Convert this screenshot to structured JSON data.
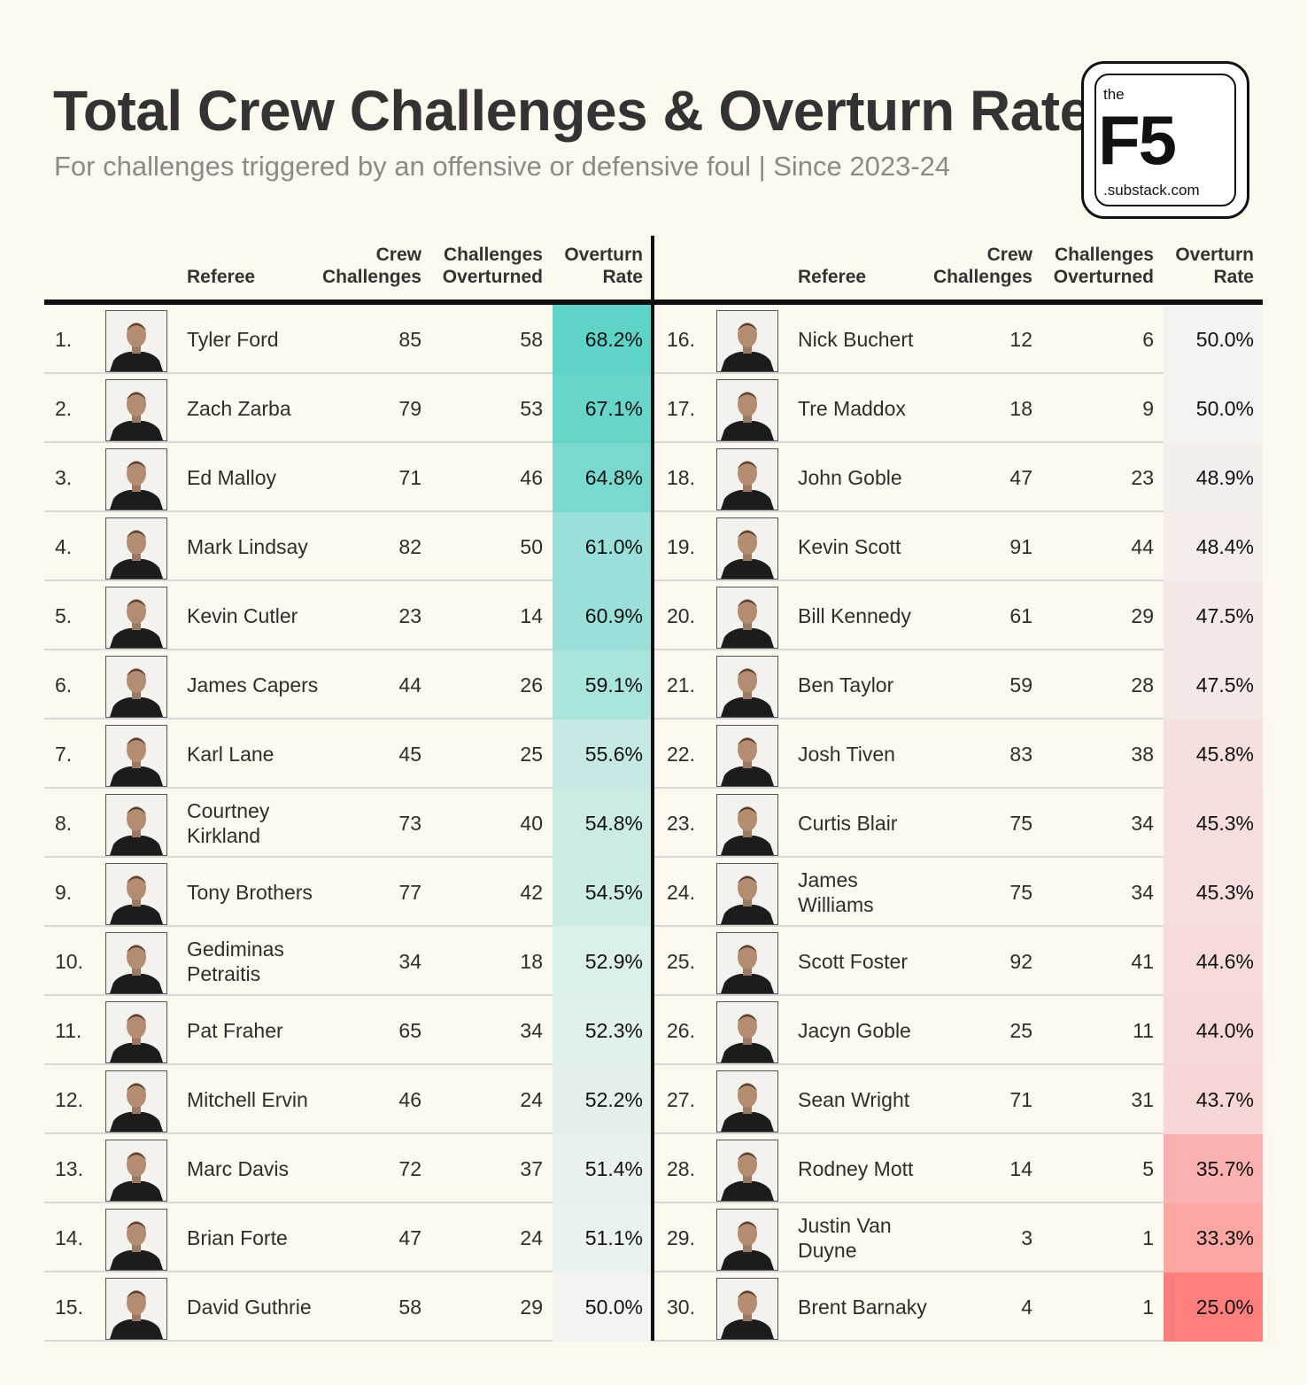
{
  "header": {
    "title": "Total Crew Challenges & Overturn Rate",
    "subtitle": "For challenges triggered by an offensive or defensive foul | Since 2023-24"
  },
  "logo": {
    "the": "the",
    "mark": "F5",
    "domain": ".substack.com"
  },
  "columns": {
    "referee": "Referee",
    "crew_challenges": "Crew\nChallenges",
    "challenges_overturned": "Challenges\nOverturned",
    "overturn_rate": "Overturn\nRate"
  },
  "colors": {
    "high": "#5ed3c7",
    "mid": "#f3f4f2",
    "low": "#ff7f7c"
  },
  "chart_data": {
    "type": "table",
    "title": "Total Crew Challenges & Overturn Rate",
    "subtitle": "For challenges triggered by an offensive or defensive foul | Since 2023-24",
    "columns": [
      "Referee",
      "Crew Challenges",
      "Challenges Overturned",
      "Overturn Rate"
    ],
    "rows": [
      {
        "rank": "1.",
        "name": "Tyler Ford",
        "challenges": 85,
        "overturned": 58,
        "rate": "68.2%",
        "rate_value": 68.2
      },
      {
        "rank": "2.",
        "name": "Zach Zarba",
        "challenges": 79,
        "overturned": 53,
        "rate": "67.1%",
        "rate_value": 67.1
      },
      {
        "rank": "3.",
        "name": "Ed Malloy",
        "challenges": 71,
        "overturned": 46,
        "rate": "64.8%",
        "rate_value": 64.8
      },
      {
        "rank": "4.",
        "name": "Mark Lindsay",
        "challenges": 82,
        "overturned": 50,
        "rate": "61.0%",
        "rate_value": 61.0
      },
      {
        "rank": "5.",
        "name": "Kevin Cutler",
        "challenges": 23,
        "overturned": 14,
        "rate": "60.9%",
        "rate_value": 60.9
      },
      {
        "rank": "6.",
        "name": "James Capers",
        "challenges": 44,
        "overturned": 26,
        "rate": "59.1%",
        "rate_value": 59.1
      },
      {
        "rank": "7.",
        "name": "Karl Lane",
        "challenges": 45,
        "overturned": 25,
        "rate": "55.6%",
        "rate_value": 55.6
      },
      {
        "rank": "8.",
        "name": "Courtney Kirkland",
        "challenges": 73,
        "overturned": 40,
        "rate": "54.8%",
        "rate_value": 54.8
      },
      {
        "rank": "9.",
        "name": "Tony Brothers",
        "challenges": 77,
        "overturned": 42,
        "rate": "54.5%",
        "rate_value": 54.5
      },
      {
        "rank": "10.",
        "name": "Gediminas Petraitis",
        "challenges": 34,
        "overturned": 18,
        "rate": "52.9%",
        "rate_value": 52.9
      },
      {
        "rank": "11.",
        "name": "Pat Fraher",
        "challenges": 65,
        "overturned": 34,
        "rate": "52.3%",
        "rate_value": 52.3
      },
      {
        "rank": "12.",
        "name": "Mitchell Ervin",
        "challenges": 46,
        "overturned": 24,
        "rate": "52.2%",
        "rate_value": 52.2
      },
      {
        "rank": "13.",
        "name": "Marc Davis",
        "challenges": 72,
        "overturned": 37,
        "rate": "51.4%",
        "rate_value": 51.4
      },
      {
        "rank": "14.",
        "name": "Brian Forte",
        "challenges": 47,
        "overturned": 24,
        "rate": "51.1%",
        "rate_value": 51.1
      },
      {
        "rank": "15.",
        "name": "David Guthrie",
        "challenges": 58,
        "overturned": 29,
        "rate": "50.0%",
        "rate_value": 50.0
      },
      {
        "rank": "16.",
        "name": "Nick Buchert",
        "challenges": 12,
        "overturned": 6,
        "rate": "50.0%",
        "rate_value": 50.0
      },
      {
        "rank": "17.",
        "name": "Tre Maddox",
        "challenges": 18,
        "overturned": 9,
        "rate": "50.0%",
        "rate_value": 50.0
      },
      {
        "rank": "18.",
        "name": "John Goble",
        "challenges": 47,
        "overturned": 23,
        "rate": "48.9%",
        "rate_value": 48.9
      },
      {
        "rank": "19.",
        "name": "Kevin Scott",
        "challenges": 91,
        "overturned": 44,
        "rate": "48.4%",
        "rate_value": 48.4
      },
      {
        "rank": "20.",
        "name": "Bill Kennedy",
        "challenges": 61,
        "overturned": 29,
        "rate": "47.5%",
        "rate_value": 47.5
      },
      {
        "rank": "21.",
        "name": "Ben Taylor",
        "challenges": 59,
        "overturned": 28,
        "rate": "47.5%",
        "rate_value": 47.5
      },
      {
        "rank": "22.",
        "name": "Josh Tiven",
        "challenges": 83,
        "overturned": 38,
        "rate": "45.8%",
        "rate_value": 45.8
      },
      {
        "rank": "23.",
        "name": "Curtis Blair",
        "challenges": 75,
        "overturned": 34,
        "rate": "45.3%",
        "rate_value": 45.3
      },
      {
        "rank": "24.",
        "name": "James Williams",
        "challenges": 75,
        "overturned": 34,
        "rate": "45.3%",
        "rate_value": 45.3
      },
      {
        "rank": "25.",
        "name": "Scott Foster",
        "challenges": 92,
        "overturned": 41,
        "rate": "44.6%",
        "rate_value": 44.6
      },
      {
        "rank": "26.",
        "name": "Jacyn Goble",
        "challenges": 25,
        "overturned": 11,
        "rate": "44.0%",
        "rate_value": 44.0
      },
      {
        "rank": "27.",
        "name": "Sean Wright",
        "challenges": 71,
        "overturned": 31,
        "rate": "43.7%",
        "rate_value": 43.7
      },
      {
        "rank": "28.",
        "name": "Rodney Mott",
        "challenges": 14,
        "overturned": 5,
        "rate": "35.7%",
        "rate_value": 35.7
      },
      {
        "rank": "29.",
        "name": "Justin Van Duyne",
        "challenges": 3,
        "overturned": 1,
        "rate": "33.3%",
        "rate_value": 33.3
      },
      {
        "rank": "30.",
        "name": "Brent Barnaky",
        "challenges": 4,
        "overturned": 1,
        "rate": "25.0%",
        "rate_value": 25.0
      }
    ]
  }
}
